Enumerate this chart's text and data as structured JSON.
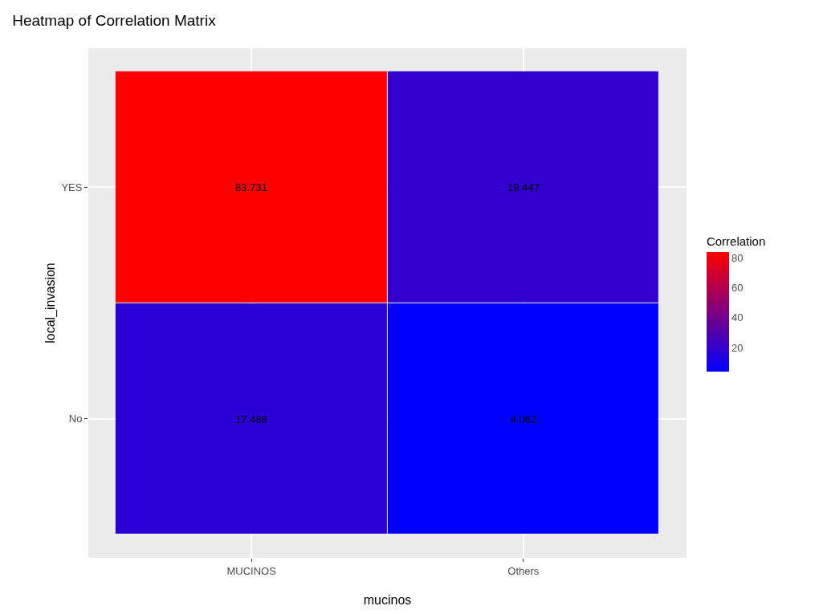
{
  "chart_data": {
    "type": "heatmap",
    "title": "Heatmap of Correlation Matrix",
    "xlabel": "mucinos",
    "ylabel": "local_invasion",
    "clabel": "Correlation",
    "categories": [
      "MUCINOS",
      "Others"
    ],
    "y_categories": [
      "YES",
      "No"
    ],
    "cells": [
      [
        83.731,
        19.447
      ],
      [
        17.488,
        4.062
      ]
    ],
    "clim": [
      4.062,
      83.731
    ],
    "cticks": [
      20,
      40,
      60,
      80
    ],
    "colors": [
      "#0000ff",
      "#ff0000"
    ],
    "data_labels": true,
    "grid": true
  }
}
